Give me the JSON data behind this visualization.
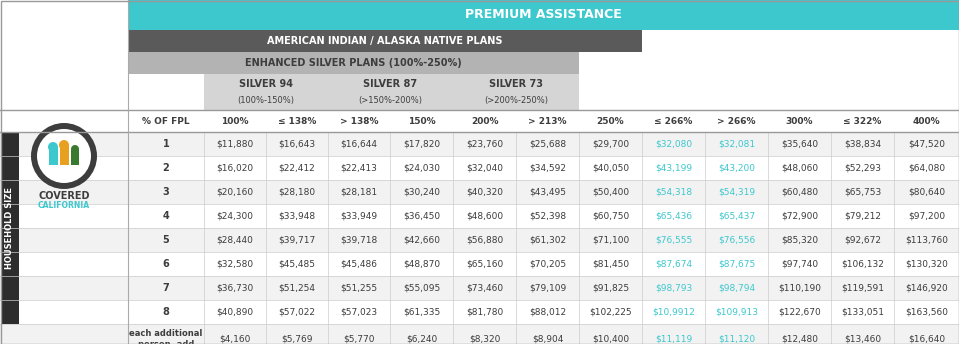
{
  "title_main": "PREMIUM ASSISTANCE",
  "title_sub1": "AMERICAN INDIAN / ALASKA NATIVE PLANS",
  "title_sub2": "ENHANCED SILVER PLANS (100%-250%)",
  "col_headers": [
    "% OF FPL",
    "100%",
    "≤ 138%",
    "> 138%",
    "150%",
    "200%",
    "> 213%",
    "250%",
    "≤ 266%",
    "> 266%",
    "300%",
    "≤ 322%",
    "400%"
  ],
  "row_labels": [
    "1",
    "2",
    "3",
    "4",
    "5",
    "6",
    "7",
    "8",
    "each additional\nperson, add"
  ],
  "data": [
    [
      "$11,880",
      "$16,643",
      "$16,644",
      "$17,820",
      "$23,760",
      "$25,688",
      "$29,700",
      "$32,080",
      "$32,081",
      "$35,640",
      "$38,834",
      "$47,520"
    ],
    [
      "$16,020",
      "$22,412",
      "$22,413",
      "$24,030",
      "$32,040",
      "$34,592",
      "$40,050",
      "$43,199",
      "$43,200",
      "$48,060",
      "$52,293",
      "$64,080"
    ],
    [
      "$20,160",
      "$28,180",
      "$28,181",
      "$30,240",
      "$40,320",
      "$43,495",
      "$50,400",
      "$54,318",
      "$54,319",
      "$60,480",
      "$65,753",
      "$80,640"
    ],
    [
      "$24,300",
      "$33,948",
      "$33,949",
      "$36,450",
      "$48,600",
      "$52,398",
      "$60,750",
      "$65,436",
      "$65,437",
      "$72,900",
      "$79,212",
      "$97,200"
    ],
    [
      "$28,440",
      "$39,717",
      "$39,718",
      "$42,660",
      "$56,880",
      "$61,302",
      "$71,100",
      "$76,555",
      "$76,556",
      "$85,320",
      "$92,672",
      "$113,760"
    ],
    [
      "$32,580",
      "$45,485",
      "$45,486",
      "$48,870",
      "$65,160",
      "$70,205",
      "$81,450",
      "$87,674",
      "$87,675",
      "$97,740",
      "$106,132",
      "$130,320"
    ],
    [
      "$36,730",
      "$51,254",
      "$51,255",
      "$55,095",
      "$73,460",
      "$79,109",
      "$91,825",
      "$98,793",
      "$98,794",
      "$110,190",
      "$119,591",
      "$146,920"
    ],
    [
      "$40,890",
      "$57,022",
      "$57,023",
      "$61,335",
      "$81,780",
      "$88,012",
      "$102,225",
      "$10,9912",
      "$109,913",
      "$122,670",
      "$133,051",
      "$163,560"
    ],
    [
      "$4,160",
      "$5,769",
      "$5,770",
      "$6,240",
      "$8,320",
      "$8,904",
      "$10,400",
      "$11,119",
      "$11,120",
      "$12,480",
      "$13,460",
      "$16,640"
    ]
  ],
  "color_teal": "#3DC8CE",
  "color_dark_gray_bar": "#5A5A5A",
  "color_med_gray_bar": "#B3B3B3",
  "color_light_gray_bar": "#D5D5D5",
  "color_row_odd": "#F2F2F2",
  "color_row_even": "#FFFFFF",
  "color_text_dark": "#3D3D3D",
  "color_text_teal": "#3DC8CE",
  "color_household_bg": "#2D2D2D",
  "logo_outer": "#3D3D3D",
  "logo_teal": "#3DC8CE",
  "logo_orange": "#E8A020",
  "logo_green": "#3A7A30"
}
